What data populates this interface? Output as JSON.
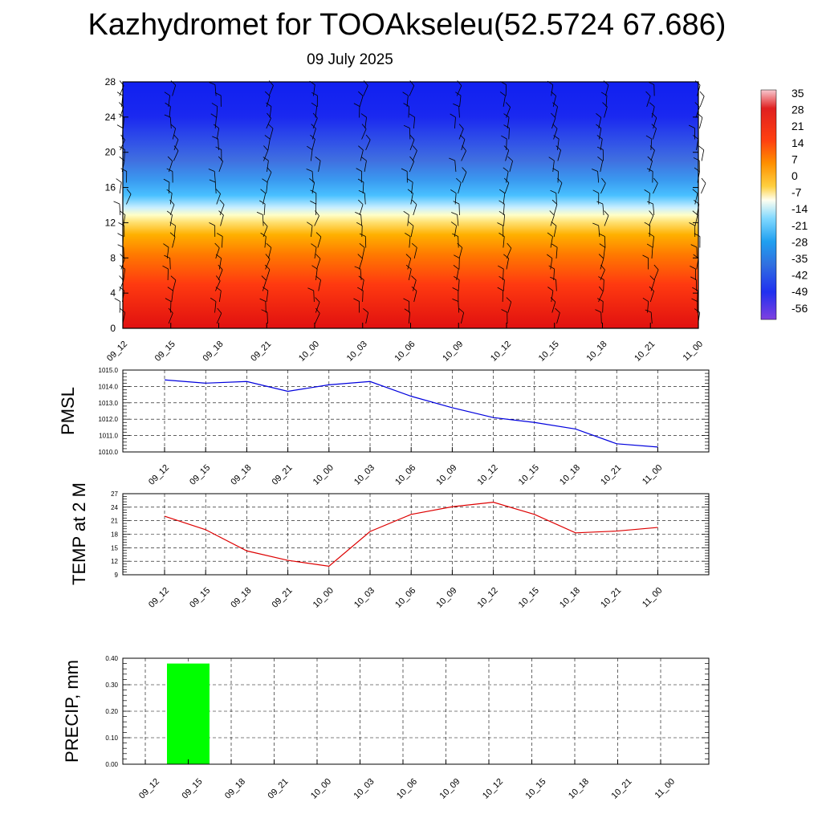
{
  "header": {
    "title": "Kazhydromet for TOOAkseleu(52.5724 67.686)",
    "subtitle": "09 July 2025"
  },
  "colors": {
    "pmsl_line": "#0000dd",
    "temp_line": "#dd0000",
    "precip_bar": "#00ff00",
    "barb": "#000000"
  },
  "chart_data": [
    {
      "type": "heatmap",
      "name": "cross-section",
      "x_ticks": [
        "09_12",
        "09_15",
        "09_18",
        "09_21",
        "10_00",
        "10_03",
        "10_06",
        "10_09",
        "10_12",
        "10_15",
        "10_18",
        "10_21",
        "11_00"
      ],
      "y_ticks": [
        "0",
        "4",
        "8",
        "12",
        "16",
        "20",
        "24",
        "28"
      ],
      "ylim": [
        0,
        28
      ],
      "colorbar_labels": [
        "35",
        "28",
        "21",
        "14",
        "7",
        "0",
        "-7",
        "-14",
        "-21",
        "-28",
        "-35",
        "-42",
        "-49",
        "-56"
      ],
      "wind_barbs": true,
      "grid": false
    },
    {
      "type": "line",
      "name": "pmsl",
      "ylabel": "PMSL",
      "x": [
        "09_12",
        "09_15",
        "09_18",
        "09_21",
        "10_00",
        "10_03",
        "10_06",
        "10_09",
        "10_12",
        "10_15",
        "10_18",
        "10_21",
        "11_00"
      ],
      "y_ticks": [
        "1010.0",
        "1011.0",
        "1012.0",
        "1013.0",
        "1014.0",
        "1015.0"
      ],
      "ylim": [
        1010,
        1015
      ],
      "values": [
        1014.4,
        1014.2,
        1014.3,
        1013.7,
        1014.1,
        1014.3,
        1013.4,
        1012.7,
        1012.1,
        1011.8,
        1011.4,
        1010.5,
        1010.3
      ],
      "grid": true
    },
    {
      "type": "line",
      "name": "temp",
      "ylabel": "TEMP at 2 M",
      "x": [
        "09_12",
        "09_15",
        "09_18",
        "09_21",
        "10_00",
        "10_03",
        "10_06",
        "10_09",
        "10_12",
        "10_15",
        "10_18",
        "10_21",
        "11_00"
      ],
      "y_ticks": [
        "9",
        "12",
        "15",
        "18",
        "21",
        "24",
        "27"
      ],
      "ylim": [
        9,
        27
      ],
      "values": [
        22.0,
        19.0,
        14.3,
        12.2,
        10.9,
        18.6,
        22.4,
        24.1,
        25.1,
        22.4,
        18.3,
        18.7,
        19.5
      ],
      "grid": true
    },
    {
      "type": "bar",
      "name": "precip",
      "ylabel": "PRECIP, mm",
      "categories": [
        "09_12",
        "09_15",
        "09_18",
        "09_21",
        "10_00",
        "10_03",
        "10_06",
        "10_09",
        "10_12",
        "10_15",
        "10_18",
        "10_21",
        "11_00"
      ],
      "y_ticks": [
        "0.00",
        "0.10",
        "0.20",
        "0.30",
        "0.40"
      ],
      "ylim": [
        0,
        0.4
      ],
      "values": [
        0,
        0.38,
        0,
        0,
        0,
        0,
        0,
        0,
        0,
        0,
        0,
        0,
        0
      ],
      "grid": true
    }
  ]
}
